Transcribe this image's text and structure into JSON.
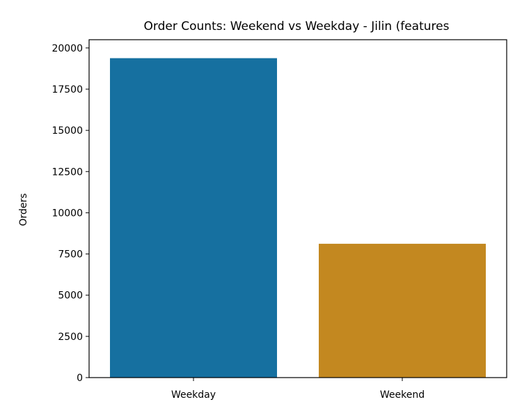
{
  "chart_data": {
    "type": "bar",
    "title": "Order Counts: Weekend vs Weekday - Jilin (features",
    "xlabel": "",
    "ylabel": "Orders",
    "categories": [
      "Weekday",
      "Weekend"
    ],
    "values": [
      19380,
      8120
    ],
    "colors": [
      "#1670a0",
      "#c38820"
    ],
    "ylim": [
      0,
      20500
    ],
    "yticks": [
      0,
      2500,
      5000,
      7500,
      10000,
      12500,
      15000,
      17500,
      20000
    ],
    "grid": false,
    "legend": "none"
  }
}
